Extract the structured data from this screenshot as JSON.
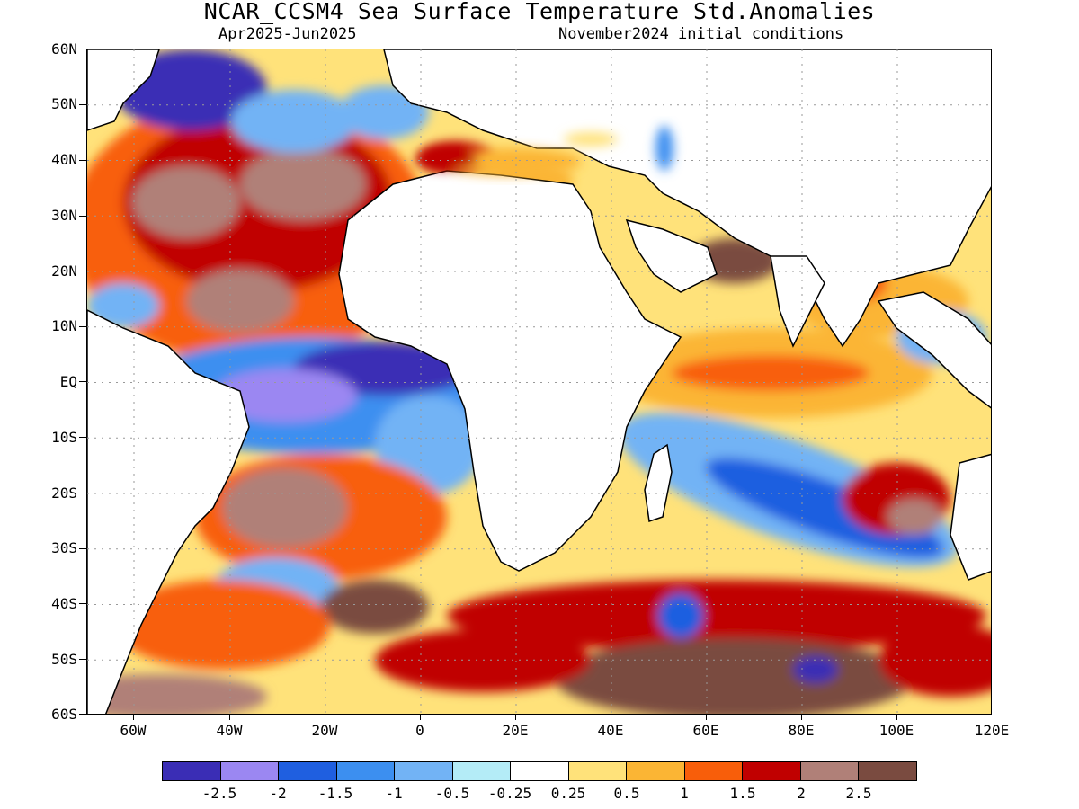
{
  "title": "NCAR_CCSM4 Sea Surface Temperature Std.Anomalies",
  "subtitle_left": "Apr2025-Jun2025",
  "subtitle_right": "November2024 initial conditions",
  "lat_labels": [
    "60N",
    "50N",
    "40N",
    "30N",
    "20N",
    "10N",
    "EQ",
    "10S",
    "20S",
    "30S",
    "40S",
    "50S",
    "60S"
  ],
  "lon_labels": [
    "60W",
    "40W",
    "20W",
    "0",
    "20E",
    "40E",
    "60E",
    "80E",
    "100E",
    "120E"
  ],
  "colorbar": {
    "colors": [
      "#3a2db5",
      "#9b87f2",
      "#1f5fe0",
      "#3c8ff0",
      "#72b3f5",
      "#b4ecf7",
      "#ffffff",
      "#ffe27a",
      "#fbb534",
      "#f85e0a",
      "#c00000",
      "#b08078",
      "#7a4b40"
    ],
    "labels": [
      "-2.5",
      "-2",
      "-1.5",
      "-1",
      "-0.5",
      "-0.25",
      "0.25",
      "0.5",
      "1",
      "1.5",
      "2",
      "2.5"
    ]
  }
}
